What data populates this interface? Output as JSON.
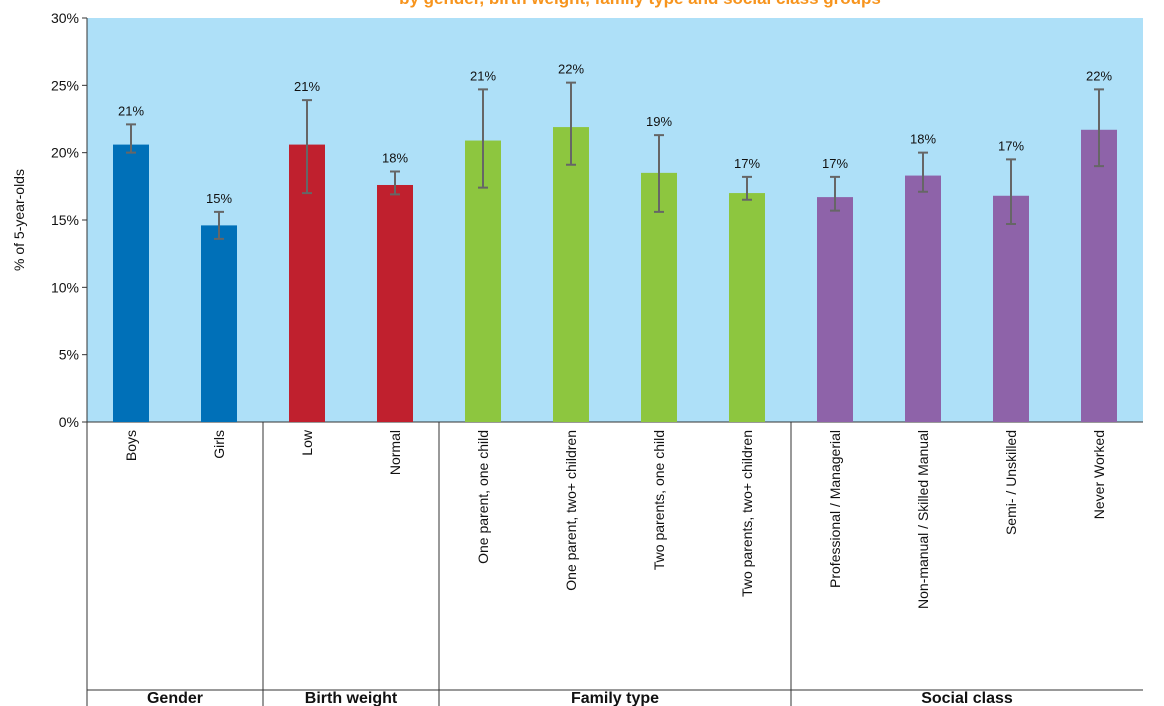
{
  "chart_data": {
    "type": "bar",
    "title": "by gender, birth weight, family type and social class groups",
    "y_label": "% of 5-year-olds",
    "ylim": [
      0,
      30
    ],
    "yticks": [
      {
        "value": 0,
        "label": "0%"
      },
      {
        "value": 5,
        "label": "5%"
      },
      {
        "value": 10,
        "label": "10%"
      },
      {
        "value": 15,
        "label": "15%"
      },
      {
        "value": 20,
        "label": "20%"
      },
      {
        "value": 25,
        "label": "25%"
      },
      {
        "value": 30,
        "label": "30%"
      }
    ],
    "background": "#aee0f8",
    "groups": [
      {
        "name": "Gender",
        "color": "#0070b8",
        "categories": [
          "Boys",
          "Girls"
        ],
        "values": [
          20.6,
          14.6
        ],
        "value_labels": [
          "21%",
          "15%"
        ],
        "error_low": [
          20.0,
          13.6
        ],
        "error_high": [
          22.1,
          15.6
        ]
      },
      {
        "name": "Birth weight",
        "color": "#c0202e",
        "categories": [
          "Low",
          "Normal"
        ],
        "values": [
          20.6,
          17.6
        ],
        "value_labels": [
          "21%",
          "18%"
        ],
        "error_low": [
          17.0,
          16.9
        ],
        "error_high": [
          23.9,
          18.6
        ]
      },
      {
        "name": "Family type",
        "color": "#8dc63f",
        "categories": [
          "One parent, one child",
          "One parent, two+ children",
          "Two parents, one child",
          "Two parents, two+ children"
        ],
        "values": [
          20.9,
          21.9,
          18.5,
          17.0
        ],
        "value_labels": [
          "21%",
          "22%",
          "19%",
          "17%"
        ],
        "error_low": [
          17.4,
          19.1,
          15.6,
          16.5
        ],
        "error_high": [
          24.7,
          25.2,
          21.3,
          18.2
        ]
      },
      {
        "name": "Social class",
        "color": "#8e63a9",
        "categories": [
          "Professional / Managerial",
          "Non-manual / Skilled Manual",
          "Semi- / Unskilled",
          "Never Worked"
        ],
        "values": [
          16.7,
          18.3,
          16.8,
          21.7
        ],
        "value_labels": [
          "17%",
          "18%",
          "17%",
          "22%"
        ],
        "error_low": [
          15.7,
          17.1,
          14.7,
          19.0
        ],
        "error_high": [
          18.2,
          20.0,
          19.5,
          24.7
        ]
      }
    ]
  }
}
